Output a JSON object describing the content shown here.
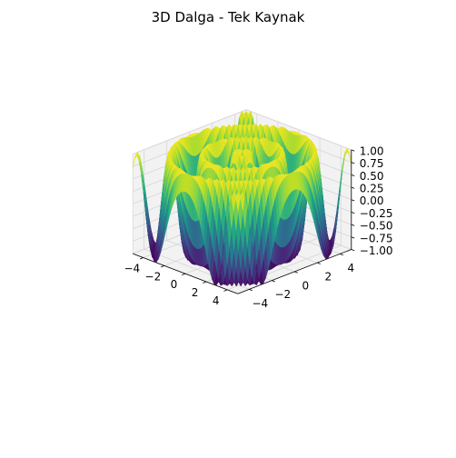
{
  "chart_data": {
    "type": "surface3d",
    "title": "3D Dalga - Tek Kaynak",
    "xlabel": "",
    "ylabel": "",
    "zlabel": "",
    "xlim": [
      -5,
      5
    ],
    "ylim": [
      -5,
      5
    ],
    "zlim": [
      -1,
      1
    ],
    "x_ticks": [
      -4,
      -2,
      0,
      2,
      4
    ],
    "y_ticks": [
      -4,
      -2,
      0,
      2,
      4
    ],
    "z_ticks": [
      -1.0,
      -0.75,
      -0.5,
      -0.25,
      0.0,
      0.25,
      0.5,
      0.75,
      1.0
    ],
    "x_tick_labels": [
      "−4",
      "−2",
      "0",
      "2",
      "4"
    ],
    "y_tick_labels": [
      "−4",
      "−2",
      "0",
      "2",
      "4"
    ],
    "z_tick_labels": [
      "−1.00",
      "−0.75",
      "−0.50",
      "−0.25",
      "0.00",
      "0.25",
      "0.50",
      "0.75",
      "1.00"
    ],
    "series": [
      {
        "surface": "z = sin(k · sqrt(x² + y²))",
        "k": 3,
        "grid_resolution": 50,
        "x_range": [
          -5,
          5
        ],
        "y_range": [
          -5,
          5
        ]
      }
    ],
    "colormap": "viridis",
    "grid": true
  },
  "colors": {
    "pane_fill": "#f2f2f2",
    "pane_edge": "#d9d9d9",
    "grid": "#d6d6d6",
    "text": "#000000"
  }
}
